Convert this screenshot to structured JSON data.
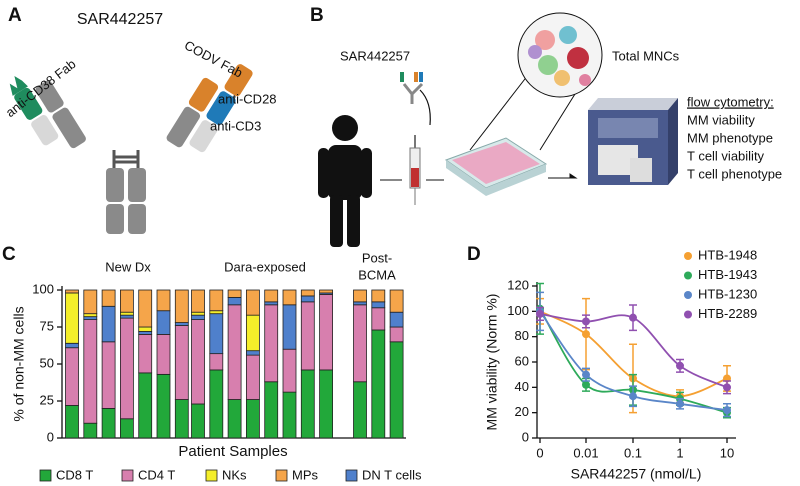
{
  "panels": {
    "a": {
      "letter": "A",
      "title": "SAR442257",
      "labels": [
        "CODV Fab",
        "anti-CD38 Fab",
        "anti-CD28",
        "anti-CD3"
      ]
    },
    "b": {
      "letter": "B",
      "drug": "SAR442257",
      "cells": "Total MNCs",
      "readout_title": "flow cytometry:",
      "readouts": [
        "MM viability",
        "MM phenotype",
        "T cell viability",
        "T cell phenotype"
      ]
    },
    "c": {
      "letter": "C"
    },
    "d": {
      "letter": "D"
    }
  },
  "chart_data": [
    {
      "type": "stacked_bar",
      "ylabel": "% of non-MM cells",
      "xlabel": "Patient Samples",
      "groups": [
        [
          "New Dx"
        ],
        [
          "Dara-exposed"
        ],
        [
          "Post-",
          "BCMA"
        ]
      ],
      "categories": [
        null,
        null,
        null,
        null,
        null,
        null,
        null,
        null,
        null,
        null,
        null,
        null,
        null,
        null,
        null,
        null,
        null,
        null
      ],
      "series": [
        {
          "name": "CD8 T",
          "color": "#22a83a",
          "values": [
            22,
            10,
            20,
            13,
            44,
            43,
            26,
            23,
            46,
            26,
            26,
            38,
            31,
            46,
            46,
            38,
            73,
            65
          ]
        },
        {
          "name": "CD4 T",
          "color": "#d77fae",
          "values": [
            39,
            70,
            45,
            68,
            26,
            27,
            50,
            57,
            11,
            64,
            30,
            52,
            29,
            46,
            51,
            52,
            15,
            10
          ]
        },
        {
          "name": "NKs",
          "color": "#f4ee2a",
          "values": [
            34,
            2,
            0,
            2,
            3,
            0,
            0,
            2,
            2,
            0,
            24,
            0,
            0,
            0,
            0,
            0,
            0,
            0
          ]
        },
        {
          "name": "MPs",
          "color": "#f5a54a",
          "values": [
            2,
            16,
            11,
            15,
            25,
            14,
            22,
            15,
            14,
            5,
            17,
            8,
            10,
            4,
            2,
            8,
            8,
            15
          ]
        },
        {
          "name": "DN T cells",
          "color": "#4f80cc",
          "values": [
            3,
            2,
            24,
            2,
            2,
            16,
            2,
            3,
            27,
            5,
            3,
            2,
            30,
            4,
            1,
            2,
            4,
            10
          ]
        }
      ],
      "ylim": [
        0,
        100
      ],
      "yticks": [
        0,
        25,
        50,
        75,
        100
      ]
    },
    {
      "type": "line",
      "xlabel": "SAR442257 (nmol/L)",
      "ylabel": "MM viability (Norm %)",
      "x": [
        0,
        0.01,
        0.1,
        1,
        10
      ],
      "xscale": "log",
      "xlim": [
        0,
        10
      ],
      "xticks": [
        0,
        0.01,
        0.1,
        1,
        10
      ],
      "ylim": [
        0,
        120
      ],
      "yticks": [
        0,
        20,
        40,
        60,
        80,
        100,
        120
      ],
      "legend": "upper right",
      "series": [
        {
          "name": "HTB-1948",
          "color": "#f5a032",
          "values": [
            100,
            82,
            47,
            33,
            47
          ],
          "errors": [
            10,
            28,
            27,
            5,
            10
          ]
        },
        {
          "name": "HTB-1943",
          "color": "#2eaa5a",
          "values": [
            102,
            42,
            38,
            31,
            20
          ],
          "errors": [
            20,
            5,
            12,
            5,
            4
          ]
        },
        {
          "name": "HTB-1230",
          "color": "#5a86c8",
          "values": [
            100,
            50,
            33,
            27,
            22
          ],
          "errors": [
            15,
            5,
            8,
            4,
            5
          ]
        },
        {
          "name": "HTB-2289",
          "color": "#9050b0",
          "values": [
            98,
            92,
            95,
            57,
            40
          ],
          "errors": [
            5,
            5,
            10,
            5,
            5
          ]
        }
      ]
    }
  ]
}
